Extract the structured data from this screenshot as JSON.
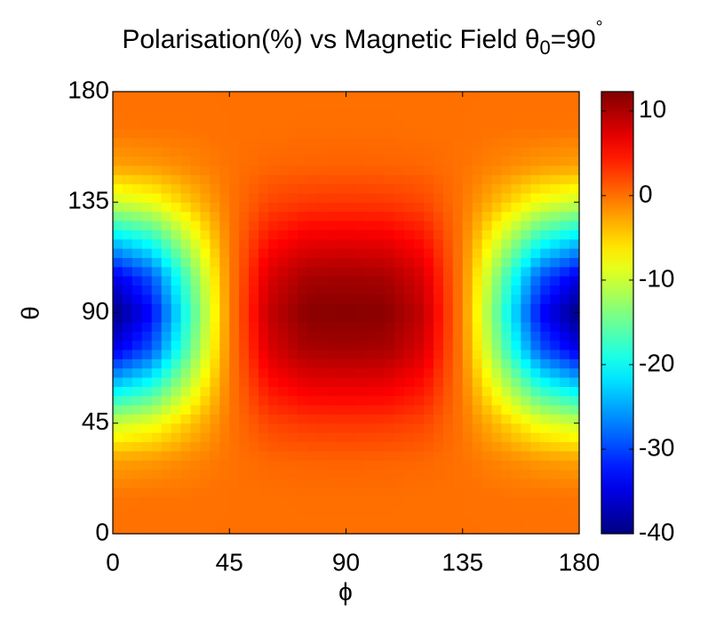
{
  "chart_data": {
    "type": "heatmap",
    "title": "Polarisation(%) vs Magnetic Field θ",
    "title_subscript": "0",
    "title_suffix": "=90",
    "title_superscript": "°",
    "xlabel": "ϕ",
    "ylabel": "θ",
    "x": [
      0,
      15,
      30,
      45,
      60,
      75,
      90,
      105,
      120,
      135,
      150,
      165,
      180
    ],
    "y": [
      0,
      15,
      30,
      45,
      60,
      75,
      90,
      105,
      120,
      135,
      150,
      165,
      180
    ],
    "z": [
      [
        0,
        0,
        0,
        0,
        0,
        0,
        0,
        0,
        0,
        0,
        0,
        0,
        0
      ],
      [
        -0.2,
        -0.1,
        -0.1,
        0,
        0,
        0.1,
        0.1,
        0.1,
        0,
        0,
        -0.1,
        -0.1,
        -0.2
      ],
      [
        -2.5,
        -2.1,
        -1.1,
        -0.1,
        0.5,
        0.7,
        0.8,
        0.7,
        0.5,
        -0.1,
        -1.1,
        -2.1,
        -2.5
      ],
      [
        -10,
        -8.3,
        -4.3,
        -0.3,
        2.2,
        2.9,
        3,
        2.9,
        2.2,
        -0.3,
        -4.3,
        -8.3,
        -10
      ],
      [
        -22.5,
        -18.7,
        -9.7,
        -0.6,
        4.9,
        6.6,
        6.8,
        6.6,
        4.9,
        -0.6,
        -9.7,
        -18.7,
        -22.5
      ],
      [
        -34.8,
        -29,
        -15,
        -0.9,
        7.6,
        10.2,
        10.4,
        10.2,
        7.6,
        -0.9,
        -15,
        -29,
        -34.8
      ],
      [
        -40,
        -33.3,
        -17.3,
        -1,
        8.8,
        11.8,
        12,
        11.8,
        8.8,
        -1,
        -17.3,
        -33.3,
        -40
      ],
      [
        -34.8,
        -29,
        -15,
        -0.9,
        7.6,
        10.2,
        10.4,
        10.2,
        7.6,
        -0.9,
        -15,
        -29,
        -34.8
      ],
      [
        -22.5,
        -18.7,
        -9.7,
        -0.6,
        4.9,
        6.6,
        6.8,
        6.6,
        4.9,
        -0.6,
        -9.7,
        -18.7,
        -22.5
      ],
      [
        -10,
        -8.3,
        -4.3,
        -0.3,
        2.2,
        2.9,
        3,
        2.9,
        2.2,
        -0.3,
        -4.3,
        -8.3,
        -10
      ],
      [
        -2.5,
        -2.1,
        -1.1,
        -0.1,
        0.5,
        0.7,
        0.8,
        0.7,
        0.5,
        -0.1,
        -1.1,
        -2.1,
        -2.5
      ],
      [
        -0.2,
        -0.1,
        -0.1,
        0,
        0,
        0.1,
        0.1,
        0.1,
        0,
        0,
        -0.1,
        -0.1,
        -0.2
      ],
      [
        0,
        0,
        0,
        0,
        0,
        0,
        0,
        0,
        0,
        0,
        0,
        0,
        0
      ]
    ],
    "xlim": [
      0,
      180
    ],
    "xticks": [
      0,
      45,
      90,
      135,
      180
    ],
    "ylim": [
      0,
      180
    ],
    "yticks": [
      0,
      45,
      90,
      135,
      180
    ],
    "colormap": "jet",
    "clim": [
      -40,
      12.3
    ],
    "cticks": [
      -40,
      -30,
      -20,
      -10,
      0,
      10
    ]
  }
}
